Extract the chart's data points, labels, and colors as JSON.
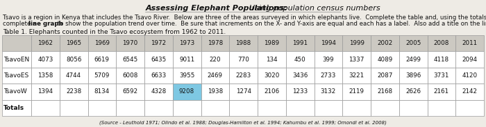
{
  "title_bold": "Assessing Elephant Populations:",
  "title_normal_italic": "  Using population census numbers",
  "desc_line1": "Tsavo is a region in Kenya that includes the Tsavo River.  Below are three of the areas surveyed in which elephants live.  Complete the table and, using the totals provided,",
  "desc_line2_pre": "complete a ",
  "desc_line2_bold": "line graph",
  "desc_line2_post": " to show the population trend over time.  Be sure that increments on the X- and Y-axis are equal and each has a label.  Also add a title on the line provided.",
  "table_title": "Table 1. Elephants counted in the Tsavo ecosystem from 1962 to 2011.",
  "years": [
    "1962",
    "1965",
    "1969",
    "1970",
    "1972",
    "1973",
    "1978",
    "1988",
    "1989",
    "1991",
    "1994",
    "1999",
    "2002",
    "2005",
    "2008",
    "2011"
  ],
  "rows": [
    {
      "label": "TsavoEN",
      "values": [
        "4073",
        "8056",
        "6619",
        "6545",
        "6435",
        "9011",
        "220",
        "770",
        "134",
        "450",
        "399",
        "1337",
        "4089",
        "2499",
        "4118",
        "2094"
      ]
    },
    {
      "label": "TsavoES",
      "values": [
        "1358",
        "4744",
        "5709",
        "6008",
        "6633",
        "3955",
        "2469",
        "2283",
        "3020",
        "3436",
        "2733",
        "3221",
        "2087",
        "3896",
        "3731",
        "4120"
      ]
    },
    {
      "label": "TsavoW",
      "values": [
        "1394",
        "2238",
        "8134",
        "6592",
        "4328",
        "9208",
        "1938",
        "1274",
        "2106",
        "1233",
        "3132",
        "2119",
        "2168",
        "2626",
        "2161",
        "2142"
      ]
    }
  ],
  "totals_label": "Totals",
  "highlight_row": 2,
  "highlight_col": 5,
  "highlight_color": "#7ec8e3",
  "source": "(Source - Leuthold 1971; Olindo et al. 1988; Douglas-Hamilton et al. 1994; Kahumbu et al. 1999; Omondi et al. 2008)",
  "bg_color": "#eeebe5",
  "white": "#ffffff",
  "header_bg": "#ccc9c2",
  "grid_color": "#999999",
  "text_color": "#111111",
  "title_fontsize": 8.0,
  "desc_fontsize": 6.2,
  "table_title_fontsize": 6.5,
  "header_fontsize": 6.3,
  "cell_fontsize": 6.3,
  "label_col_fontsize": 6.5,
  "source_fontsize": 5.0,
  "underline_color": "#888888"
}
